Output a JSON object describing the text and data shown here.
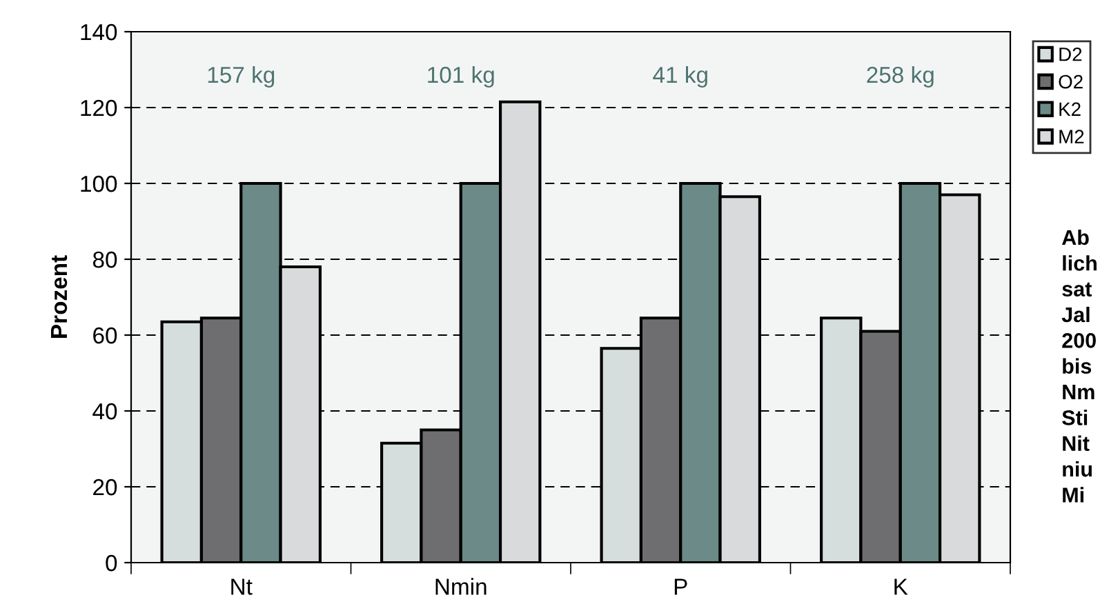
{
  "chart_data": {
    "type": "bar",
    "ylabel": "Prozent",
    "categories": [
      "Nt",
      "Nmin",
      "P",
      "K"
    ],
    "series": [
      {
        "name": "D2",
        "color": "#d5dedd",
        "values": [
          63.5,
          31.5,
          56.5,
          64.5
        ]
      },
      {
        "name": "O2",
        "color": "#6e6e70",
        "values": [
          64.5,
          35,
          64.5,
          61
        ]
      },
      {
        "name": "K2",
        "color": "#6b8a88",
        "values": [
          100,
          100,
          100,
          100
        ]
      },
      {
        "name": "M2",
        "color": "#d9dadc",
        "values": [
          78,
          121.5,
          96.5,
          97
        ]
      }
    ],
    "ylim": [
      0,
      140
    ],
    "yticks": [
      0,
      20,
      40,
      60,
      80,
      100,
      120,
      140
    ],
    "grid": "y",
    "legend": "top right",
    "annotations": [
      "157 kg",
      "101 kg",
      "41 kg",
      "258 kg",
      "Ab\nlich\nsat\nJal\n200\nbis\nNm\nSti\nNit\nniu\nMi"
    ]
  }
}
